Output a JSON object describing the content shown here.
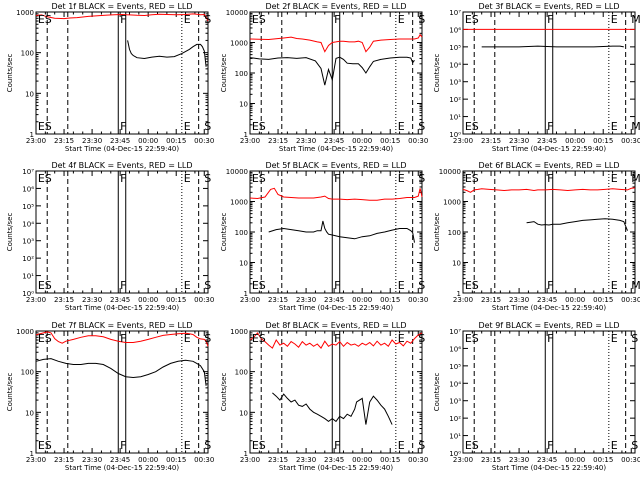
{
  "colors": {
    "events": "#000000",
    "lld": "#ff0000",
    "axis": "#000000",
    "background": "#ffffff"
  },
  "chart_data": [
    {
      "type": "line",
      "detector": "1f",
      "title": "Det 1f BLACK = Events, RED = LLD",
      "ylabel": "Counts/sec",
      "xlabel": "Start Time (04-Dec-15 22:59:40)",
      "ylim": [
        1,
        1000
      ],
      "yscale": "log",
      "yticks": [
        "1",
        "10",
        "100",
        "1000"
      ],
      "xticks": [
        "23:00",
        "23:15",
        "23:30",
        "23:45",
        "00:00",
        "00:15",
        "00:30"
      ],
      "markers": [
        "ES",
        "F",
        "E",
        "S"
      ],
      "series": [
        {
          "key": "lld",
          "x": [
            0,
            3,
            6,
            10,
            15,
            18,
            22,
            28,
            32,
            38,
            42,
            46,
            50,
            54,
            58,
            62,
            66,
            70,
            75,
            80,
            84,
            86,
            88,
            90,
            91,
            92
          ],
          "values": [
            820,
            850,
            760,
            700,
            690,
            710,
            730,
            780,
            800,
            840,
            860,
            870,
            850,
            830,
            820,
            860,
            880,
            870,
            860,
            870,
            900,
            880,
            860,
            870,
            760,
            600
          ]
        },
        {
          "key": "events",
          "x": [
            49,
            50,
            51,
            52,
            53,
            54,
            58,
            62,
            66,
            70,
            74,
            78,
            82,
            84,
            86,
            88,
            89,
            90,
            91
          ],
          "values": [
            200,
            120,
            95,
            85,
            80,
            75,
            72,
            78,
            82,
            78,
            80,
            95,
            120,
            140,
            160,
            160,
            140,
            110,
            45
          ]
        }
      ]
    },
    {
      "type": "line",
      "detector": "2f",
      "title": "Det 2f BLACK = Events, RED = LLD",
      "ylabel": "Counts/sec",
      "xlabel": "Start Time (04-Dec-15 22:59:40)",
      "ylim": [
        1,
        10000
      ],
      "yscale": "log",
      "yticks": [
        "1",
        "10",
        "100",
        "1000",
        "10000"
      ],
      "xticks": [
        "23:00",
        "23:15",
        "23:30",
        "23:45",
        "00:00",
        "00:15",
        "00:30"
      ],
      "markers": [
        "ES",
        "F",
        "E",
        "S"
      ],
      "series": [
        {
          "key": "lld",
          "x": [
            0,
            10,
            18,
            22,
            25,
            28,
            32,
            36,
            38,
            40,
            42,
            44,
            46,
            48,
            50,
            53,
            56,
            58,
            60,
            62,
            64,
            66,
            70,
            75,
            80,
            85,
            88,
            90,
            91,
            92
          ],
          "values": [
            1300,
            1250,
            1400,
            1500,
            1350,
            1300,
            1200,
            1050,
            1000,
            500,
            800,
            1000,
            1050,
            1100,
            1100,
            1050,
            1050,
            1100,
            1000,
            500,
            700,
            1100,
            1200,
            1250,
            1300,
            1300,
            1300,
            1400,
            1800,
            1500
          ]
        },
        {
          "key": "events",
          "x": [
            0,
            5,
            10,
            15,
            20,
            25,
            30,
            35,
            38,
            40,
            42,
            44,
            46,
            48,
            50,
            52,
            55,
            58,
            60,
            62,
            64,
            66,
            70,
            75,
            80,
            84,
            86,
            87,
            88
          ],
          "values": [
            320,
            290,
            280,
            310,
            320,
            300,
            320,
            250,
            140,
            40,
            130,
            60,
            300,
            330,
            280,
            210,
            200,
            200,
            150,
            100,
            160,
            240,
            280,
            310,
            330,
            330,
            310,
            220,
            260
          ]
        }
      ]
    },
    {
      "type": "line",
      "detector": "3f",
      "title": "Det 3f BLACK = Events, RED = LLD",
      "ylabel": "Counts/sec",
      "xlabel": "Start Time (04-Dec-15 22:59:40)",
      "ylim": [
        1,
        10000000
      ],
      "yscale": "log",
      "yticks": [
        "10⁰",
        "10¹",
        "10²",
        "10³",
        "10⁴",
        "10⁵",
        "10⁶",
        "10⁷"
      ],
      "xticks": [
        "23:00",
        "23:15",
        "23:30",
        "23:45",
        "00:00",
        "00:15",
        "00:30"
      ],
      "markers": [
        "ES",
        "F",
        "E",
        "M"
      ],
      "series": [
        {
          "key": "lld",
          "x": [
            0,
            92
          ],
          "values": [
            1000000,
            1000000
          ]
        },
        {
          "key": "events",
          "x": [
            10,
            15,
            20,
            30,
            40,
            50,
            60,
            70,
            80,
            84,
            86
          ],
          "values": [
            100000,
            100000,
            100000,
            100000,
            110000,
            100000,
            100000,
            100000,
            110000,
            110000,
            100000
          ]
        }
      ]
    },
    {
      "type": "line",
      "detector": "4f",
      "title": "Det 4f BLACK = Events, RED = LLD",
      "ylabel": "Counts/sec",
      "xlabel": "Start Time (04-Dec-15 22:59:40)",
      "ylim": [
        1,
        10000000
      ],
      "yscale": "log",
      "yticks": [
        "10⁰",
        "10¹",
        "10²",
        "10³",
        "10⁴",
        "10⁵",
        "10⁶",
        "10⁷"
      ],
      "xticks": [
        "23:00",
        "23:15",
        "23:30",
        "23:45",
        "00:00",
        "00:15",
        "00:30"
      ],
      "markers": [
        "ES",
        "F",
        "E",
        "S"
      ],
      "series": []
    },
    {
      "type": "line",
      "detector": "5f",
      "title": "Det 5f BLACK = Events, RED = LLD",
      "ylabel": "Counts/sec",
      "xlabel": "Start Time (04-Dec-15 22:59:40)",
      "ylim": [
        1,
        10000
      ],
      "yscale": "log",
      "yticks": [
        "1",
        "10",
        "100",
        "1000",
        "10000"
      ],
      "xticks": [
        "23:00",
        "23:15",
        "23:30",
        "23:45",
        "00:00",
        "00:15",
        "00:30"
      ],
      "markers": [
        "ES",
        "F",
        "E",
        "S"
      ],
      "series": [
        {
          "key": "lld",
          "x": [
            0,
            4,
            8,
            11,
            13,
            15,
            18,
            22,
            26,
            30,
            34,
            38,
            40,
            42,
            44,
            48,
            52,
            56,
            60,
            64,
            68,
            72,
            76,
            80,
            84,
            88,
            90,
            91,
            92
          ],
          "values": [
            1300,
            1250,
            1400,
            2500,
            2700,
            1700,
            1400,
            1350,
            1300,
            1300,
            1300,
            1400,
            1500,
            1250,
            1200,
            1200,
            1150,
            1200,
            1150,
            1100,
            1100,
            1200,
            1200,
            1250,
            1350,
            1350,
            1500,
            2700,
            1400
          ]
        },
        {
          "key": "events",
          "x": [
            10,
            14,
            18,
            22,
            26,
            30,
            34,
            36,
            38,
            39,
            40,
            41,
            42,
            44,
            48,
            52,
            56,
            60,
            64,
            68,
            72,
            76,
            80,
            84,
            86,
            87,
            88
          ],
          "values": [
            100,
            120,
            130,
            120,
            110,
            100,
            100,
            110,
            110,
            230,
            130,
            100,
            85,
            80,
            70,
            65,
            60,
            70,
            75,
            90,
            100,
            115,
            130,
            130,
            110,
            95,
            45
          ]
        }
      ]
    },
    {
      "type": "line",
      "detector": "6f",
      "title": "Det 6f BLACK = Events, RED = LLD",
      "ylabel": "Counts/sec",
      "xlabel": "Start Time (04-Dec-15 22:59:40)",
      "ylim": [
        1,
        10000
      ],
      "yscale": "log",
      "yticks": [
        "1",
        "10",
        "100",
        "1000",
        "10000"
      ],
      "xticks": [
        "23:00",
        "23:15",
        "23:30",
        "23:45",
        "00:00",
        "00:15",
        "00:30"
      ],
      "markers": [
        "ES",
        "F",
        "E",
        "M"
      ],
      "series": [
        {
          "key": "lld",
          "x": [
            0,
            2,
            4,
            6,
            8,
            10,
            14,
            18,
            22,
            26,
            30,
            34,
            38,
            40,
            44,
            48,
            52,
            56,
            60,
            64,
            68,
            72,
            76,
            80,
            84,
            88,
            90,
            92
          ],
          "values": [
            2500,
            2300,
            2000,
            2400,
            2500,
            2600,
            2500,
            2400,
            2300,
            2400,
            2400,
            2500,
            2300,
            2400,
            2400,
            2500,
            2400,
            2300,
            2400,
            2500,
            2400,
            2400,
            2500,
            2600,
            2500,
            2400,
            2700,
            2800
          ]
        },
        {
          "key": "events",
          "x": [
            34,
            36,
            38,
            40,
            42,
            44,
            46,
            48,
            52,
            56,
            60,
            64,
            68,
            72,
            76,
            80,
            84,
            86,
            88
          ],
          "values": [
            200,
            210,
            220,
            180,
            170,
            175,
            170,
            180,
            180,
            200,
            220,
            240,
            250,
            260,
            270,
            260,
            240,
            220,
            110
          ]
        }
      ]
    },
    {
      "type": "line",
      "detector": "7f",
      "title": "Det 7f BLACK = Events, RED = LLD",
      "ylabel": "Counts/sec",
      "xlabel": "Start Time (04-Dec-15 22:59:40)",
      "ylim": [
        1,
        1000
      ],
      "yscale": "log",
      "yticks": [
        "1",
        "10",
        "100",
        "1000"
      ],
      "xticks": [
        "23:00",
        "23:15",
        "23:30",
        "23:45",
        "00:00",
        "00:15",
        "00:30"
      ],
      "markers": [
        "ES",
        "F",
        "E",
        "S"
      ],
      "series": [
        {
          "key": "lld",
          "x": [
            0,
            2,
            4,
            6,
            8,
            10,
            12,
            14,
            16,
            20,
            24,
            28,
            32,
            36,
            40,
            44,
            48,
            52,
            56,
            60,
            64,
            68,
            72,
            76,
            80,
            82,
            84,
            86,
            88,
            90,
            91,
            92
          ],
          "values": [
            800,
            850,
            900,
            950,
            900,
            650,
            550,
            500,
            560,
            620,
            700,
            760,
            760,
            720,
            620,
            560,
            520,
            520,
            560,
            620,
            700,
            780,
            820,
            860,
            880,
            860,
            820,
            700,
            640,
            620,
            560,
            420
          ]
        },
        {
          "key": "events",
          "x": [
            0,
            4,
            8,
            12,
            16,
            20,
            24,
            28,
            32,
            36,
            40,
            44,
            48,
            52,
            56,
            60,
            64,
            68,
            72,
            76,
            80,
            84,
            86,
            88,
            90,
            91
          ],
          "values": [
            180,
            200,
            210,
            180,
            160,
            150,
            150,
            160,
            160,
            150,
            120,
            90,
            75,
            72,
            75,
            85,
            100,
            130,
            160,
            180,
            190,
            180,
            160,
            140,
            100,
            45
          ]
        }
      ]
    },
    {
      "type": "line",
      "detector": "8f",
      "title": "Det 8f BLACK = Events, RED = LLD",
      "ylabel": "Counts/sec",
      "xlabel": "Start Time (04-Dec-15 22:59:40)",
      "ylim": [
        1,
        1000
      ],
      "yscale": "log",
      "yticks": [
        "1",
        "10",
        "100",
        "1000"
      ],
      "xticks": [
        "23:00",
        "23:15",
        "23:30",
        "23:45",
        "00:00",
        "00:15",
        "00:30"
      ],
      "markers": [
        "ES",
        "F",
        "E",
        "S"
      ],
      "series": [
        {
          "key": "lld",
          "x": [
            0,
            2,
            4,
            6,
            8,
            10,
            12,
            14,
            16,
            18,
            20,
            22,
            24,
            26,
            28,
            30,
            32,
            34,
            36,
            38,
            40,
            42,
            44,
            46,
            48,
            50,
            52,
            54,
            56,
            58,
            60,
            62,
            64,
            66,
            68,
            70,
            72,
            74,
            76,
            78,
            80,
            82,
            84,
            86,
            88,
            90,
            92
          ],
          "values": [
            600,
            700,
            900,
            650,
            550,
            450,
            380,
            600,
            450,
            500,
            420,
            550,
            480,
            400,
            550,
            450,
            500,
            420,
            480,
            380,
            560,
            420,
            480,
            450,
            550,
            420,
            520,
            450,
            480,
            420,
            500,
            450,
            520,
            430,
            560,
            450,
            500,
            420,
            600,
            480,
            520,
            430,
            560,
            500,
            650,
            800,
            900
          ]
        },
        {
          "key": "events",
          "x": [
            12,
            14,
            16,
            18,
            20,
            22,
            24,
            26,
            28,
            30,
            32,
            34,
            36,
            38,
            40,
            42,
            44,
            46,
            48,
            50,
            52,
            54,
            56,
            57,
            60,
            62,
            64,
            66,
            68,
            70,
            72,
            74,
            76
          ],
          "values": [
            30,
            25,
            20,
            28,
            22,
            18,
            20,
            15,
            14,
            16,
            12,
            10,
            9,
            8,
            7,
            6,
            7,
            6,
            8,
            7,
            9,
            8,
            12,
            18,
            22,
            5,
            18,
            25,
            20,
            15,
            12,
            8,
            5
          ]
        }
      ]
    },
    {
      "type": "line",
      "detector": "9f",
      "title": "Det 9f BLACK = Events, RED = LLD",
      "ylabel": "Counts/sec",
      "xlabel": "Start Time (04-Dec-15 22:59:40)",
      "ylim": [
        1,
        10000000
      ],
      "yscale": "log",
      "yticks": [
        "10⁰",
        "10¹",
        "10²",
        "10³",
        "10⁴",
        "10⁵",
        "10⁶",
        "10⁷"
      ],
      "xticks": [
        "23:00",
        "23:15",
        "23:30",
        "23:45",
        "00:00",
        "00:15",
        "00:30"
      ],
      "markers": [
        "ES",
        "F",
        "E",
        "S"
      ],
      "series": []
    }
  ]
}
